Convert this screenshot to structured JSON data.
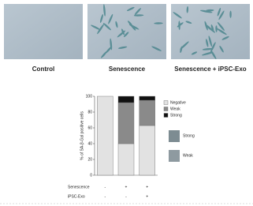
{
  "panels": [
    "Control",
    "Senescence",
    "Senescence + iPSC-Exo"
  ],
  "chart_data": {
    "type": "bar",
    "stacked": true,
    "y_label": "% of SA-β-Gal positive cells",
    "categories": [
      null,
      null,
      null
    ],
    "series": [
      {
        "name": "Negative",
        "color": "#e2e2e2",
        "values": [
          100,
          40,
          63
        ]
      },
      {
        "name": "Weak",
        "color": "#8a8a8a",
        "values": [
          0,
          52,
          32
        ]
      },
      {
        "name": "Strong",
        "color": "#111111",
        "values": [
          0,
          8,
          5
        ]
      }
    ],
    "ylim": [
      0,
      100
    ],
    "yticks": [
      0,
      20,
      40,
      60,
      80,
      100
    ],
    "treatments": [
      {
        "name": "Senescence",
        "values": [
          "-",
          "+",
          "+"
        ]
      },
      {
        "name": "iPSC-Exo",
        "values": [
          "-",
          "-",
          "+"
        ]
      }
    ]
  }
}
